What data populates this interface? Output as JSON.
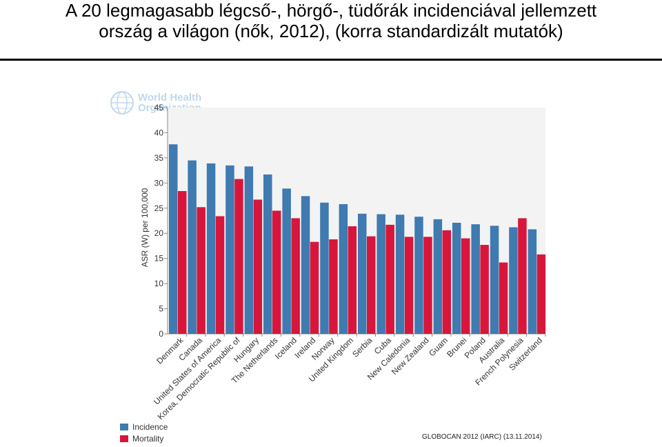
{
  "header": {
    "title_line1": "A 20 legmagasabb légcső-, hörgő-, tüdőrák incidenciával jellemzett",
    "title_line2": "ország a világon (nők, 2012), (korra standardizált mutatók)"
  },
  "logo": {
    "line1": "World Health",
    "line2": "Organization"
  },
  "source": "GLOBOCAN 2012 (IARC) (13.11.2014)",
  "colors": {
    "incidence": "#3f7ab0",
    "mortality": "#d8163b",
    "plot_bg": "#f3f3f3",
    "axis": "#888888"
  },
  "chart_data": {
    "type": "bar",
    "title": "A 20 legmagasabb légcső-, hörgő-, tüdőrák incidenciával jellemzett ország a világon (nők, 2012), (korra standardizált mutatók)",
    "xlabel": "",
    "ylabel": "ASR (W) per 100,000",
    "ylim": [
      0,
      45
    ],
    "yticks": [
      0,
      5,
      10,
      15,
      20,
      25,
      30,
      35,
      40,
      45
    ],
    "grid": false,
    "legend_position": "bottom-left",
    "categories": [
      "Denmark",
      "Canada",
      "United States of America",
      "Korea, Democratic Republic of",
      "Hungary",
      "The Netherlands",
      "Iceland",
      "Ireland",
      "Norway",
      "United Kingdom",
      "Serbia",
      "Cuba",
      "New Caledonia",
      "New Zealand",
      "Guam",
      "Brunei",
      "Poland",
      "Australia",
      "French Polynesia",
      "Switzerland"
    ],
    "series": [
      {
        "name": "Incidence",
        "values": [
          37.7,
          34.5,
          33.9,
          33.5,
          33.3,
          31.7,
          28.9,
          27.4,
          26.1,
          25.8,
          23.9,
          23.8,
          23.7,
          23.3,
          22.8,
          22.1,
          21.8,
          21.5,
          21.2,
          20.8
        ]
      },
      {
        "name": "Mortality",
        "values": [
          28.4,
          25.2,
          23.4,
          30.8,
          26.7,
          24.5,
          23.0,
          18.3,
          18.8,
          21.4,
          19.4,
          21.7,
          19.3,
          19.3,
          20.6,
          19.0,
          17.7,
          14.2,
          23.0,
          15.8
        ]
      }
    ]
  }
}
